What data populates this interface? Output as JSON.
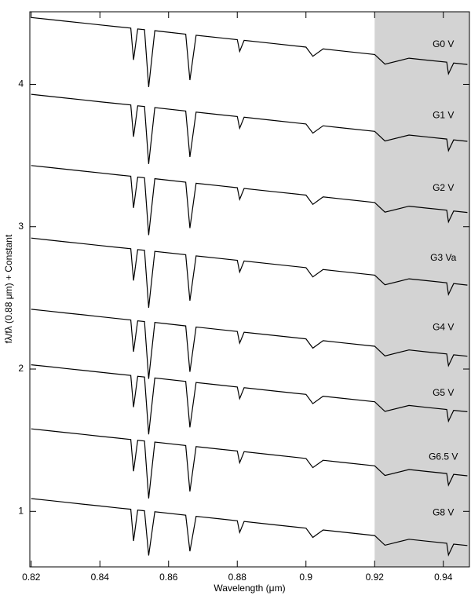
{
  "chart_data": {
    "type": "line",
    "x_label": "Wavelength (μm)",
    "y_label": "fλ/fλ (0.88 μm) + Constant",
    "xlim": [
      0.8196,
      0.9476
    ],
    "ylim": [
      0.61,
      4.51
    ],
    "xticks": [
      0.82,
      0.84,
      0.86,
      0.88,
      0.9,
      0.92,
      0.94
    ],
    "yticks": [
      1,
      2,
      3,
      4
    ],
    "shade": {
      "from": 0.92,
      "color": "#d3d3d3"
    },
    "label_x": 0.94,
    "x": [
      0.82,
      0.825,
      0.83,
      0.835,
      0.84,
      0.845,
      0.849,
      0.8498,
      0.851,
      0.853,
      0.8542,
      0.856,
      0.865,
      0.8662,
      0.868,
      0.875,
      0.88,
      0.8807,
      0.882,
      0.89,
      0.9,
      0.902,
      0.905,
      0.91,
      0.92,
      0.923,
      0.93,
      0.935,
      0.941,
      0.9415,
      0.943,
      0.947
    ],
    "series": [
      {
        "name": "G0 V",
        "color": "#000000",
        "label_y": 4.28,
        "values": [
          4.47,
          4.457,
          4.444,
          4.431,
          4.418,
          4.405,
          4.395,
          4.172,
          4.389,
          4.384,
          3.981,
          4.377,
          4.353,
          4.03,
          4.345,
          4.327,
          4.314,
          4.232,
          4.309,
          4.288,
          4.262,
          4.197,
          4.249,
          4.236,
          4.21,
          4.142,
          4.184,
          4.171,
          4.156,
          4.074,
          4.15,
          4.14
        ]
      },
      {
        "name": "G1 V",
        "color": "#000000",
        "label_y": 3.78,
        "values": [
          3.93,
          3.917,
          3.904,
          3.891,
          3.878,
          3.865,
          3.855,
          3.632,
          3.849,
          3.844,
          3.441,
          3.837,
          3.813,
          3.49,
          3.805,
          3.787,
          3.774,
          3.692,
          3.769,
          3.748,
          3.722,
          3.657,
          3.709,
          3.696,
          3.67,
          3.602,
          3.644,
          3.631,
          3.616,
          3.534,
          3.61,
          3.6
        ]
      },
      {
        "name": "G2 V",
        "color": "#000000",
        "label_y": 3.27,
        "values": [
          3.43,
          3.417,
          3.404,
          3.391,
          3.378,
          3.365,
          3.355,
          3.132,
          3.349,
          3.344,
          2.941,
          3.337,
          3.313,
          2.99,
          3.305,
          3.287,
          3.274,
          3.192,
          3.269,
          3.248,
          3.222,
          3.157,
          3.209,
          3.196,
          3.17,
          3.102,
          3.144,
          3.131,
          3.116,
          3.034,
          3.11,
          3.1
        ]
      },
      {
        "name": "G3 Va",
        "color": "#000000",
        "label_y": 2.78,
        "values": [
          2.92,
          2.907,
          2.894,
          2.881,
          2.868,
          2.855,
          2.845,
          2.622,
          2.839,
          2.834,
          2.431,
          2.827,
          2.803,
          2.48,
          2.795,
          2.777,
          2.764,
          2.682,
          2.759,
          2.738,
          2.712,
          2.647,
          2.699,
          2.686,
          2.66,
          2.592,
          2.634,
          2.621,
          2.606,
          2.524,
          2.6,
          2.59
        ]
      },
      {
        "name": "G4 V",
        "color": "#000000",
        "label_y": 2.29,
        "values": [
          2.42,
          2.407,
          2.394,
          2.381,
          2.368,
          2.355,
          2.345,
          2.122,
          2.339,
          2.334,
          1.931,
          2.327,
          2.303,
          1.98,
          2.295,
          2.277,
          2.264,
          2.182,
          2.259,
          2.238,
          2.212,
          2.147,
          2.199,
          2.186,
          2.16,
          2.092,
          2.134,
          2.121,
          2.106,
          2.024,
          2.1,
          2.09
        ]
      },
      {
        "name": "G5 V",
        "color": "#000000",
        "label_y": 1.83,
        "values": [
          2.03,
          2.017,
          2.004,
          1.991,
          1.978,
          1.965,
          1.955,
          1.732,
          1.949,
          1.944,
          1.541,
          1.937,
          1.913,
          1.59,
          1.905,
          1.887,
          1.874,
          1.792,
          1.869,
          1.848,
          1.822,
          1.757,
          1.809,
          1.796,
          1.77,
          1.702,
          1.744,
          1.731,
          1.716,
          1.634,
          1.71,
          1.7
        ]
      },
      {
        "name": "G6.5 V",
        "color": "#000000",
        "label_y": 1.38,
        "values": [
          1.58,
          1.567,
          1.554,
          1.541,
          1.528,
          1.515,
          1.505,
          1.282,
          1.499,
          1.494,
          1.091,
          1.487,
          1.463,
          1.14,
          1.455,
          1.437,
          1.424,
          1.342,
          1.419,
          1.398,
          1.372,
          1.307,
          1.359,
          1.346,
          1.32,
          1.252,
          1.294,
          1.281,
          1.266,
          1.184,
          1.26,
          1.25
        ]
      },
      {
        "name": "G8 V",
        "color": "#000000",
        "label_y": 0.99,
        "values": [
          1.09,
          1.077,
          1.064,
          1.051,
          1.038,
          1.025,
          1.015,
          0.792,
          1.009,
          1.004,
          0.69,
          0.997,
          0.973,
          0.72,
          0.965,
          0.947,
          0.934,
          0.852,
          0.929,
          0.908,
          0.882,
          0.817,
          0.869,
          0.856,
          0.83,
          0.762,
          0.804,
          0.791,
          0.776,
          0.694,
          0.77,
          0.76
        ]
      }
    ]
  }
}
